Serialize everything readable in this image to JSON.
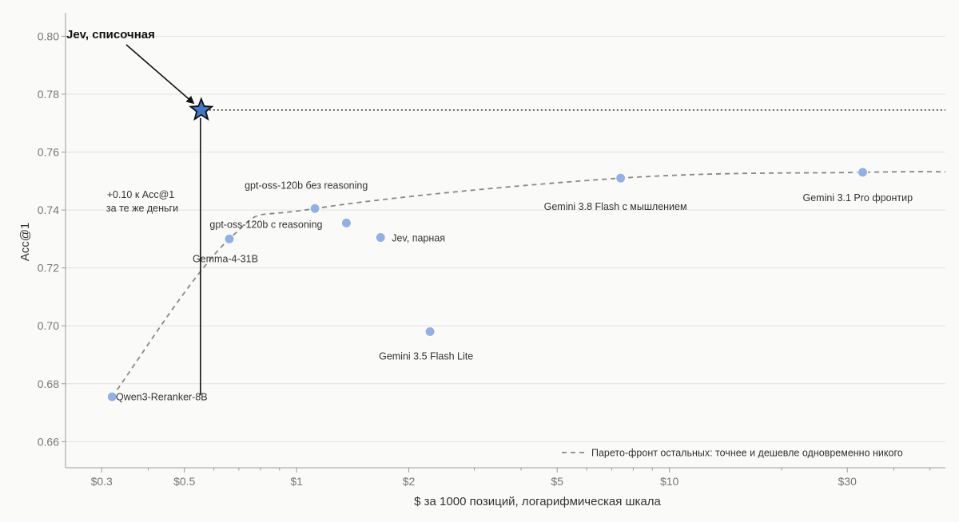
{
  "chart_data": {
    "type": "scatter",
    "xlabel": "$ за 1000 позиций, логарифмическая шкала",
    "ylabel": "Acc@1",
    "x_scale": "log",
    "xlim": [
      0.24,
      55
    ],
    "ylim": [
      0.651,
      0.807
    ],
    "x_ticks": [
      {
        "value": 0.3,
        "label": "$0.3"
      },
      {
        "value": 0.5,
        "label": "$0.5"
      },
      {
        "value": 1,
        "label": "$1"
      },
      {
        "value": 2,
        "label": "$2"
      },
      {
        "value": 5,
        "label": "$5"
      },
      {
        "value": 10,
        "label": "$10"
      },
      {
        "value": 30,
        "label": "$30"
      }
    ],
    "x_minor_ticks": [
      0.4,
      0.6,
      0.7,
      0.8,
      0.9,
      3,
      4,
      6,
      7,
      8,
      9,
      20,
      40,
      50
    ],
    "y_ticks": [
      {
        "value": 0.66,
        "label": "0.66"
      },
      {
        "value": 0.68,
        "label": "0.68"
      },
      {
        "value": 0.7,
        "label": "0.70"
      },
      {
        "value": 0.72,
        "label": "0.72"
      },
      {
        "value": 0.74,
        "label": "0.74"
      },
      {
        "value": 0.76,
        "label": "0.76"
      },
      {
        "value": 0.78,
        "label": "0.78"
      },
      {
        "value": 0.8,
        "label": "0.80"
      }
    ],
    "grid": "horizontal",
    "points": [
      {
        "label": "Qwen3-Reranker-8B",
        "x": 0.32,
        "y": 0.6755
      },
      {
        "label": "Gemma-4-31B",
        "x": 0.66,
        "y": 0.73
      },
      {
        "label": "gpt-oss-120b без reasoning",
        "x": 1.12,
        "y": 0.7405
      },
      {
        "label": "gpt-oss-120b с reasoning",
        "x": 1.36,
        "y": 0.7355
      },
      {
        "label": "Jev, парная",
        "x": 1.68,
        "y": 0.7305
      },
      {
        "label": "Gemini 3.5 Flash Lite",
        "x": 2.28,
        "y": 0.698
      },
      {
        "label": "Gemini 3.8 Flash с мышлением",
        "x": 7.4,
        "y": 0.751
      },
      {
        "label": "Gemini 3.1 Pro фронтир",
        "x": 33,
        "y": 0.753
      }
    ],
    "highlight": {
      "label": "Jev, списочная",
      "x": 0.555,
      "y": 0.7745
    },
    "pareto_front": [
      {
        "x": 0.32,
        "y": 0.6755
      },
      {
        "x": 0.66,
        "y": 0.73
      },
      {
        "x": 1.12,
        "y": 0.7405
      },
      {
        "x": 7.4,
        "y": 0.751
      },
      {
        "x": 33,
        "y": 0.753
      },
      {
        "x": 55,
        "y": 0.7532
      }
    ],
    "annotation": {
      "lines": [
        "+0.10 к Acc@1",
        "за те же деньги"
      ]
    },
    "legend": {
      "label": "Парето-фронт остальных: точнее и дешевле одновременно никого",
      "placement": "bottom-right"
    },
    "colors": {
      "point": "#8fb1e6",
      "star_fill": "#3f78c6",
      "star_stroke": "#111111",
      "pareto": "#888888",
      "grid": "#e2e2e2",
      "axis": "#999999"
    }
  }
}
